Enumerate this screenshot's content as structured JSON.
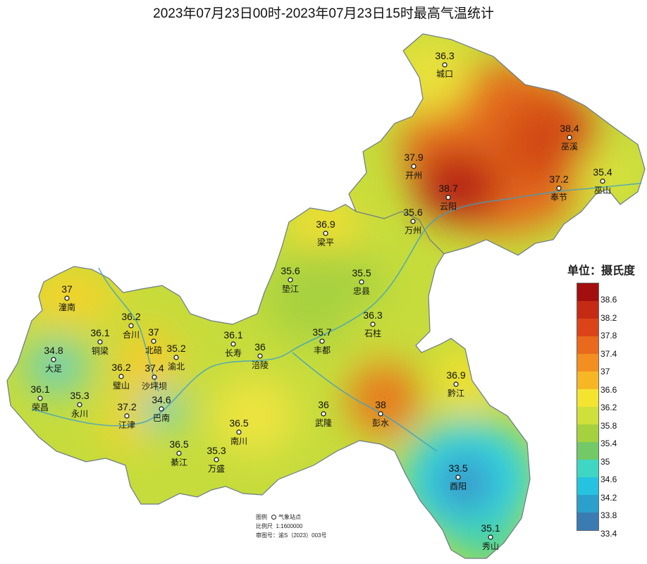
{
  "title": "2023年07月23日00时-2023年07月23日15时最高气温统计",
  "legend": {
    "title": "单位：摄氏度",
    "levels": [
      "38.6",
      "38.2",
      "37.8",
      "37.4",
      "37",
      "36.6",
      "36.2",
      "35.8",
      "35.4",
      "35",
      "34.6",
      "34.2",
      "33.8",
      "33.4"
    ],
    "colors": [
      "#a30f0f",
      "#c52a14",
      "#da4418",
      "#e96a1c",
      "#f28f20",
      "#f7b725",
      "#f4e430",
      "#cfe03a",
      "#a6d13f",
      "#72c966",
      "#3fd7c4",
      "#25c3e0",
      "#2ca0cc",
      "#3a7bb2"
    ]
  },
  "stations": [
    {
      "value": "36.3",
      "name": "城口"
    },
    {
      "value": "38.4",
      "name": "巫溪"
    },
    {
      "value": "37.9",
      "name": "开州"
    },
    {
      "value": "38.7",
      "name": "云阳"
    },
    {
      "value": "37.2",
      "name": "奉节"
    },
    {
      "value": "35.4",
      "name": "巫山"
    },
    {
      "value": "36.9",
      "name": "梁平"
    },
    {
      "value": "35.6",
      "name": "万州"
    },
    {
      "value": "35.6",
      "name": "垫江"
    },
    {
      "value": "35.5",
      "name": "忠县"
    },
    {
      "value": "37",
      "name": "潼南"
    },
    {
      "value": "36.2",
      "name": "合川"
    },
    {
      "value": "36.1",
      "name": "铜梁"
    },
    {
      "value": "37",
      "name": "北碚"
    },
    {
      "value": "35.2",
      "name": "渝北"
    },
    {
      "value": "34.8",
      "name": "大足"
    },
    {
      "value": "36.2",
      "name": "璧山"
    },
    {
      "value": "37.4",
      "name": "沙坪坝"
    },
    {
      "value": "36.1",
      "name": "长寿"
    },
    {
      "value": "36",
      "name": "涪陵"
    },
    {
      "value": "35.7",
      "name": "丰都"
    },
    {
      "value": "36.3",
      "name": "石柱"
    },
    {
      "value": "36.1",
      "name": "荣昌"
    },
    {
      "value": "35.3",
      "name": "永川"
    },
    {
      "value": "37.2",
      "name": "江津"
    },
    {
      "value": "34.6",
      "name": "巴南"
    },
    {
      "value": "36.5",
      "name": "南川"
    },
    {
      "value": "36.5",
      "name": "綦江"
    },
    {
      "value": "35.3",
      "name": "万盛"
    },
    {
      "value": "36",
      "name": "武隆"
    },
    {
      "value": "38",
      "name": "彭水"
    },
    {
      "value": "36.9",
      "name": "黔江"
    },
    {
      "value": "33.5",
      "name": "酉阳"
    },
    {
      "value": "35.1",
      "name": "秀山"
    }
  ],
  "map_info": {
    "legend_label": "图例",
    "station_label": "气象站点",
    "scale_label": "比例尺",
    "scale_value": "1:1600000",
    "approval_label": "审图号：",
    "approval_value": "渝S（2023）003号"
  }
}
